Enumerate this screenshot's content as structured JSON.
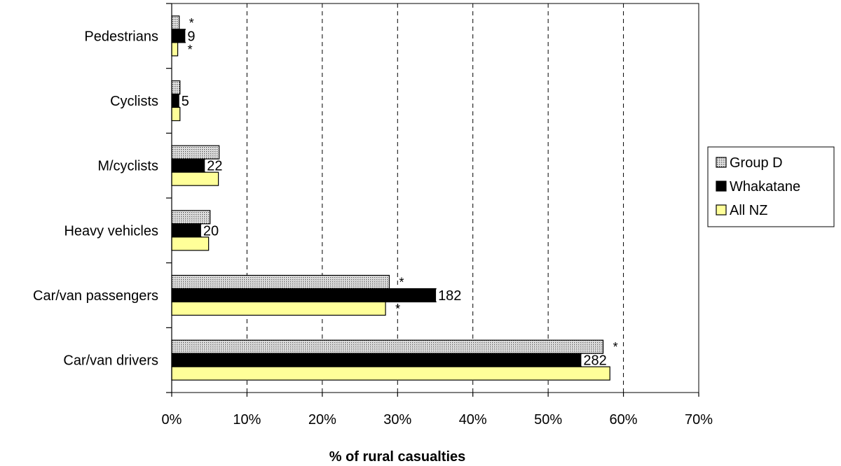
{
  "chart_data": {
    "type": "bar",
    "orientation": "horizontal",
    "categories": [
      "Pedestrians",
      "Cyclists",
      "M/cyclists",
      "Heavy vehicles",
      "Car/van passengers",
      "Car/van drivers"
    ],
    "series": [
      {
        "name": "Group D",
        "values": [
          1.0,
          1.1,
          6.3,
          5.1,
          28.9,
          57.3
        ],
        "color": "#d8d8d8",
        "pattern": "dotted"
      },
      {
        "name": "Whakatane",
        "values": [
          1.8,
          1.0,
          4.4,
          3.9,
          35.1,
          54.4
        ],
        "color": "#000000"
      },
      {
        "name": "All NZ",
        "values": [
          0.8,
          1.1,
          6.2,
          4.9,
          28.4,
          58.2
        ],
        "color": "#ffff99"
      }
    ],
    "data_labels": [
      "9",
      "5",
      "22",
      "20",
      "182",
      "282"
    ],
    "significance_marks": [
      {
        "category": "Pedestrians",
        "series": "Group D",
        "mark": "*"
      },
      {
        "category": "Pedestrians",
        "series": "All NZ",
        "mark": "*"
      },
      {
        "category": "Car/van passengers",
        "series": "Group D",
        "mark": "*"
      },
      {
        "category": "Car/van passengers",
        "series": "All NZ",
        "mark": "*"
      },
      {
        "category": "Car/van drivers",
        "series": "Group D",
        "mark": "*"
      }
    ],
    "xlabel": "% of rural casualties",
    "xlim": [
      0,
      70
    ],
    "xticks": [
      0,
      10,
      20,
      30,
      40,
      50,
      60,
      70
    ],
    "xtick_labels": [
      "0%",
      "10%",
      "20%",
      "30%",
      "40%",
      "50%",
      "60%",
      "70%"
    ],
    "grid": "vertical dashed",
    "legend_position": "right"
  }
}
